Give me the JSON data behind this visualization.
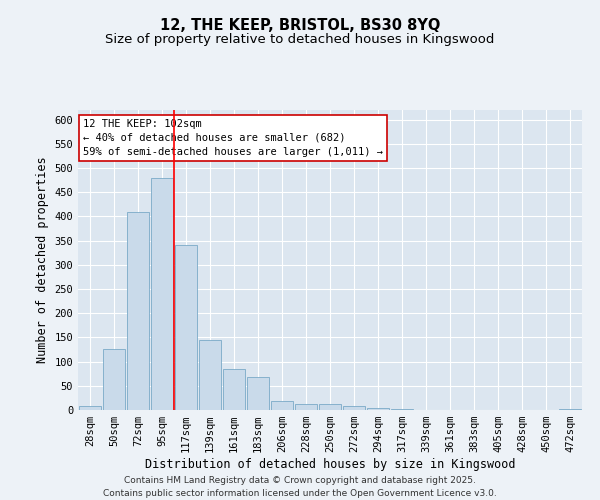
{
  "title_line1": "12, THE KEEP, BRISTOL, BS30 8YQ",
  "title_line2": "Size of property relative to detached houses in Kingswood",
  "xlabel": "Distribution of detached houses by size in Kingswood",
  "ylabel": "Number of detached properties",
  "categories": [
    "28sqm",
    "50sqm",
    "72sqm",
    "95sqm",
    "117sqm",
    "139sqm",
    "161sqm",
    "183sqm",
    "206sqm",
    "228sqm",
    "250sqm",
    "272sqm",
    "294sqm",
    "317sqm",
    "339sqm",
    "361sqm",
    "383sqm",
    "405sqm",
    "428sqm",
    "450sqm",
    "472sqm"
  ],
  "values": [
    8,
    127,
    410,
    480,
    342,
    145,
    85,
    68,
    18,
    12,
    13,
    8,
    5,
    2,
    0,
    0,
    0,
    0,
    0,
    0,
    3
  ],
  "bar_color": "#c9daea",
  "bar_edgecolor": "#7aaac8",
  "background_color": "#dce6f0",
  "grid_color": "#ffffff",
  "ref_line_idx": 3.5,
  "ref_line_label": "12 THE KEEP: 102sqm",
  "annotation_line1": "← 40% of detached houses are smaller (682)",
  "annotation_line2": "59% of semi-detached houses are larger (1,011) →",
  "annotation_box_facecolor": "#ffffff",
  "annotation_box_edgecolor": "#cc0000",
  "footer_line1": "Contains HM Land Registry data © Crown copyright and database right 2025.",
  "footer_line2": "Contains public sector information licensed under the Open Government Licence v3.0.",
  "ylim": [
    0,
    620
  ],
  "yticks": [
    0,
    50,
    100,
    150,
    200,
    250,
    300,
    350,
    400,
    450,
    500,
    550,
    600
  ],
  "fig_bg_color": "#edf2f7",
  "title_fontsize": 10.5,
  "subtitle_fontsize": 9.5,
  "axis_label_fontsize": 8.5,
  "tick_fontsize": 7.5,
  "annotation_fontsize": 7.5,
  "footer_fontsize": 6.5
}
